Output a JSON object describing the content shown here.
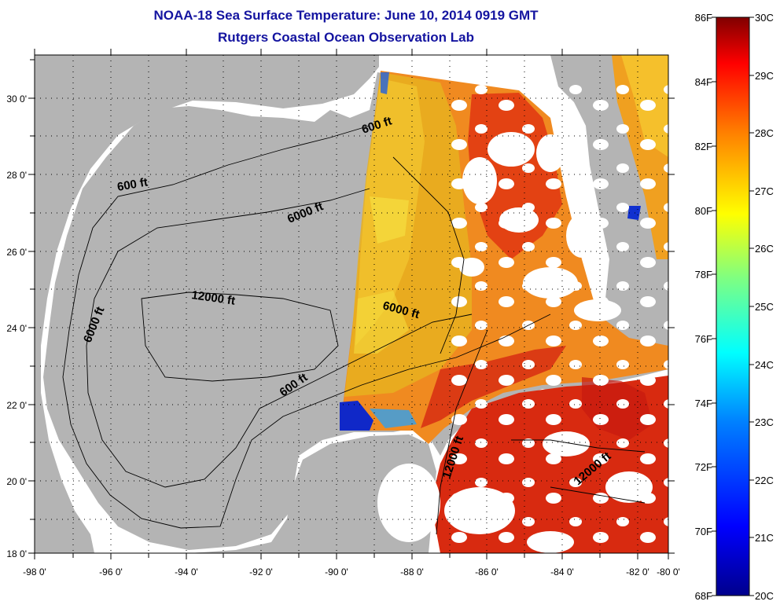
{
  "title": "NOAA-18 Sea Surface Temperature:  June 10, 2014 0919 GMT",
  "subtitle": "Rutgers Coastal Ocean Observation Lab",
  "map": {
    "lon_ticks": [
      "-98 0'",
      "-96 0'",
      "-94 0'",
      "-92 0'",
      "-90 0'",
      "-88 0'",
      "-86 0'",
      "-84 0'",
      "-82 0'",
      "-80 0'"
    ],
    "lat_ticks": [
      "18 0'",
      "20 0'",
      "22 0'",
      "24 0'",
      "26 0'",
      "28 0'",
      "30 0'"
    ],
    "lon_range": [
      -98,
      -80
    ],
    "lat_range": [
      18,
      31
    ],
    "contour_labels": [
      "600 ft",
      "600 ft",
      "6000 ft",
      "12000 ft",
      "6000 ft",
      "6000 ft",
      "600 ft",
      "12000 ft",
      "12000 ft"
    ],
    "colors": {
      "land": "#b4b4b4",
      "no_data": "#ffffff",
      "title": "#1414a0",
      "grid_dots": "#000000"
    }
  },
  "colorbar": {
    "fahrenheit_ticks": [
      "86F",
      "84F",
      "82F",
      "80F",
      "78F",
      "76F",
      "74F",
      "72F",
      "70F",
      "68F"
    ],
    "celsius_ticks": [
      "30C",
      "29C",
      "28C",
      "27C",
      "26C",
      "25C",
      "24C",
      "23C",
      "22C",
      "21C",
      "20C"
    ],
    "stops": [
      "#00008c",
      "#0000ff",
      "#0080ff",
      "#00ffff",
      "#80ff80",
      "#ffff00",
      "#ff8000",
      "#ff0000",
      "#800000"
    ]
  }
}
